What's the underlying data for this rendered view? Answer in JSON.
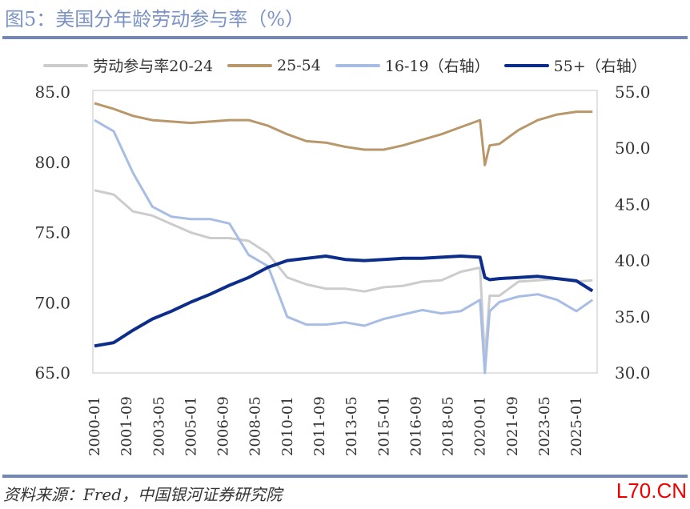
{
  "title": "图5：美国分年龄劳动参与率（%）",
  "source": "资料来源：Fred，中国银河证券研究院",
  "watermark": "L70.CN",
  "chart_data": {
    "type": "line",
    "title": "图5：美国分年龄劳动参与率（%）",
    "left_axis": {
      "ylim": [
        65,
        85
      ],
      "ticks": [
        "65.0",
        "70.0",
        "75.0",
        "80.0",
        "85.0"
      ]
    },
    "right_axis": {
      "ylim": [
        30,
        55
      ],
      "ticks": [
        "30.0",
        "35.0",
        "40.0",
        "45.0",
        "50.0",
        "55.0"
      ]
    },
    "x_ticks": [
      "2000-01",
      "2001-09",
      "2003-05",
      "2005-01",
      "2006-09",
      "2008-05",
      "2010-01",
      "2011-09",
      "2013-05",
      "2015-01",
      "2016-09",
      "2018-05",
      "2020-01",
      "2021-09",
      "2023-05",
      "2025-01"
    ],
    "x": [
      "2000-01",
      "2001-01",
      "2002-01",
      "2003-01",
      "2004-01",
      "2005-01",
      "2006-01",
      "2007-01",
      "2008-01",
      "2009-01",
      "2010-01",
      "2011-01",
      "2012-01",
      "2013-01",
      "2014-01",
      "2015-01",
      "2016-01",
      "2017-01",
      "2018-01",
      "2019-01",
      "2020-01",
      "2020-04",
      "2020-07",
      "2021-01",
      "2022-01",
      "2023-01",
      "2024-01",
      "2025-01",
      "2025-11"
    ],
    "series": [
      {
        "name": "劳动参与率20-24",
        "axis": "left",
        "color": "#cccccc",
        "values": [
          78.0,
          77.7,
          76.5,
          76.2,
          75.6,
          75.0,
          74.6,
          74.6,
          74.4,
          73.5,
          71.8,
          71.3,
          71.0,
          71.0,
          70.8,
          71.1,
          71.2,
          71.5,
          71.6,
          72.2,
          72.5,
          66.0,
          70.5,
          70.5,
          71.5,
          71.6,
          71.7,
          71.5,
          71.6
        ]
      },
      {
        "name": "25-54",
        "axis": "left",
        "color": "#b8976a",
        "values": [
          84.2,
          83.8,
          83.3,
          83.0,
          82.9,
          82.8,
          82.9,
          83.0,
          83.0,
          82.6,
          82.0,
          81.5,
          81.4,
          81.1,
          80.9,
          80.9,
          81.2,
          81.6,
          82.0,
          82.5,
          83.0,
          79.8,
          81.2,
          81.3,
          82.3,
          83.0,
          83.4,
          83.6,
          83.6
        ]
      },
      {
        "name": "16-19（右轴）",
        "axis": "right",
        "color": "#a7bde3",
        "values": [
          52.5,
          51.5,
          47.8,
          44.8,
          43.9,
          43.7,
          43.7,
          43.3,
          40.5,
          39.5,
          35.0,
          34.3,
          34.3,
          34.5,
          34.2,
          34.8,
          35.2,
          35.6,
          35.3,
          35.5,
          36.5,
          30.0,
          35.5,
          36.3,
          36.8,
          37.0,
          36.5,
          35.5,
          36.5
        ]
      },
      {
        "name": "55+（右轴）",
        "axis": "right",
        "color": "#0c2e8a",
        "values": [
          32.4,
          32.7,
          33.8,
          34.8,
          35.5,
          36.3,
          37.0,
          37.8,
          38.5,
          39.4,
          40.0,
          40.2,
          40.4,
          40.1,
          40.0,
          40.1,
          40.2,
          40.2,
          40.3,
          40.4,
          40.3,
          38.5,
          38.3,
          38.4,
          38.5,
          38.6,
          38.4,
          38.2,
          37.3
        ]
      }
    ]
  }
}
